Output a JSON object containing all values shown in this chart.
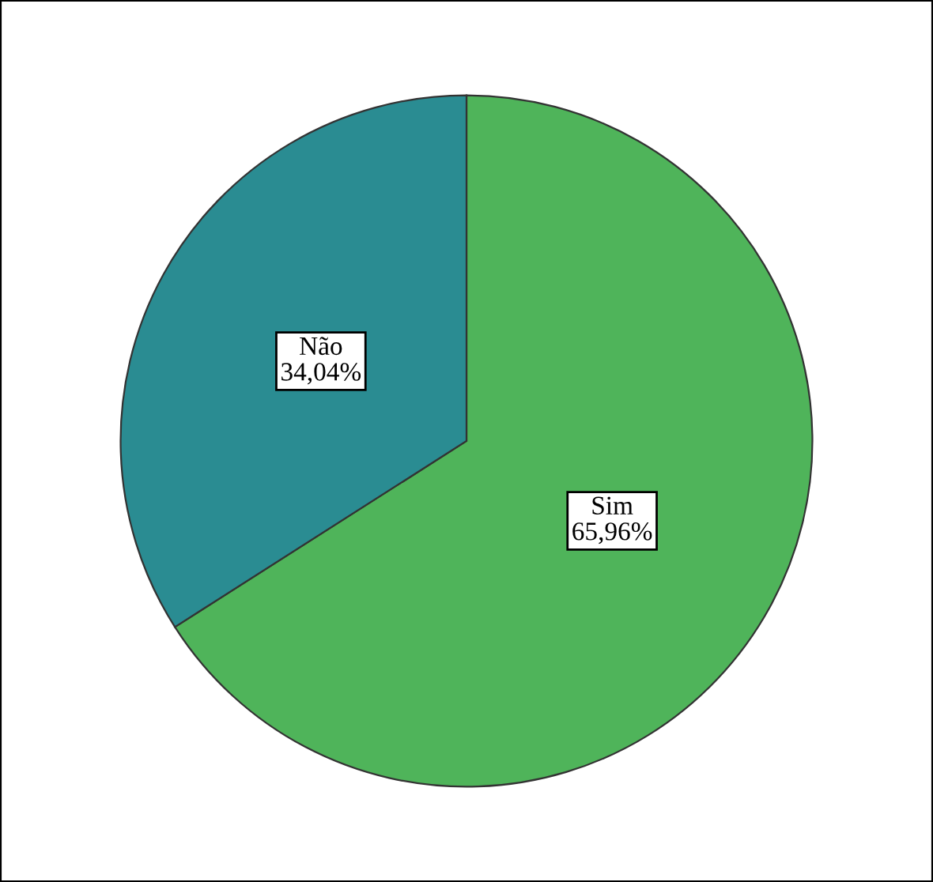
{
  "chart_data": {
    "type": "pie",
    "categories": [
      "Sim",
      "Não"
    ],
    "values": [
      65.96,
      34.04
    ],
    "value_labels": [
      "65,96%",
      "34,04%"
    ],
    "colors": [
      "#4fb45a",
      "#2a8c92"
    ]
  }
}
